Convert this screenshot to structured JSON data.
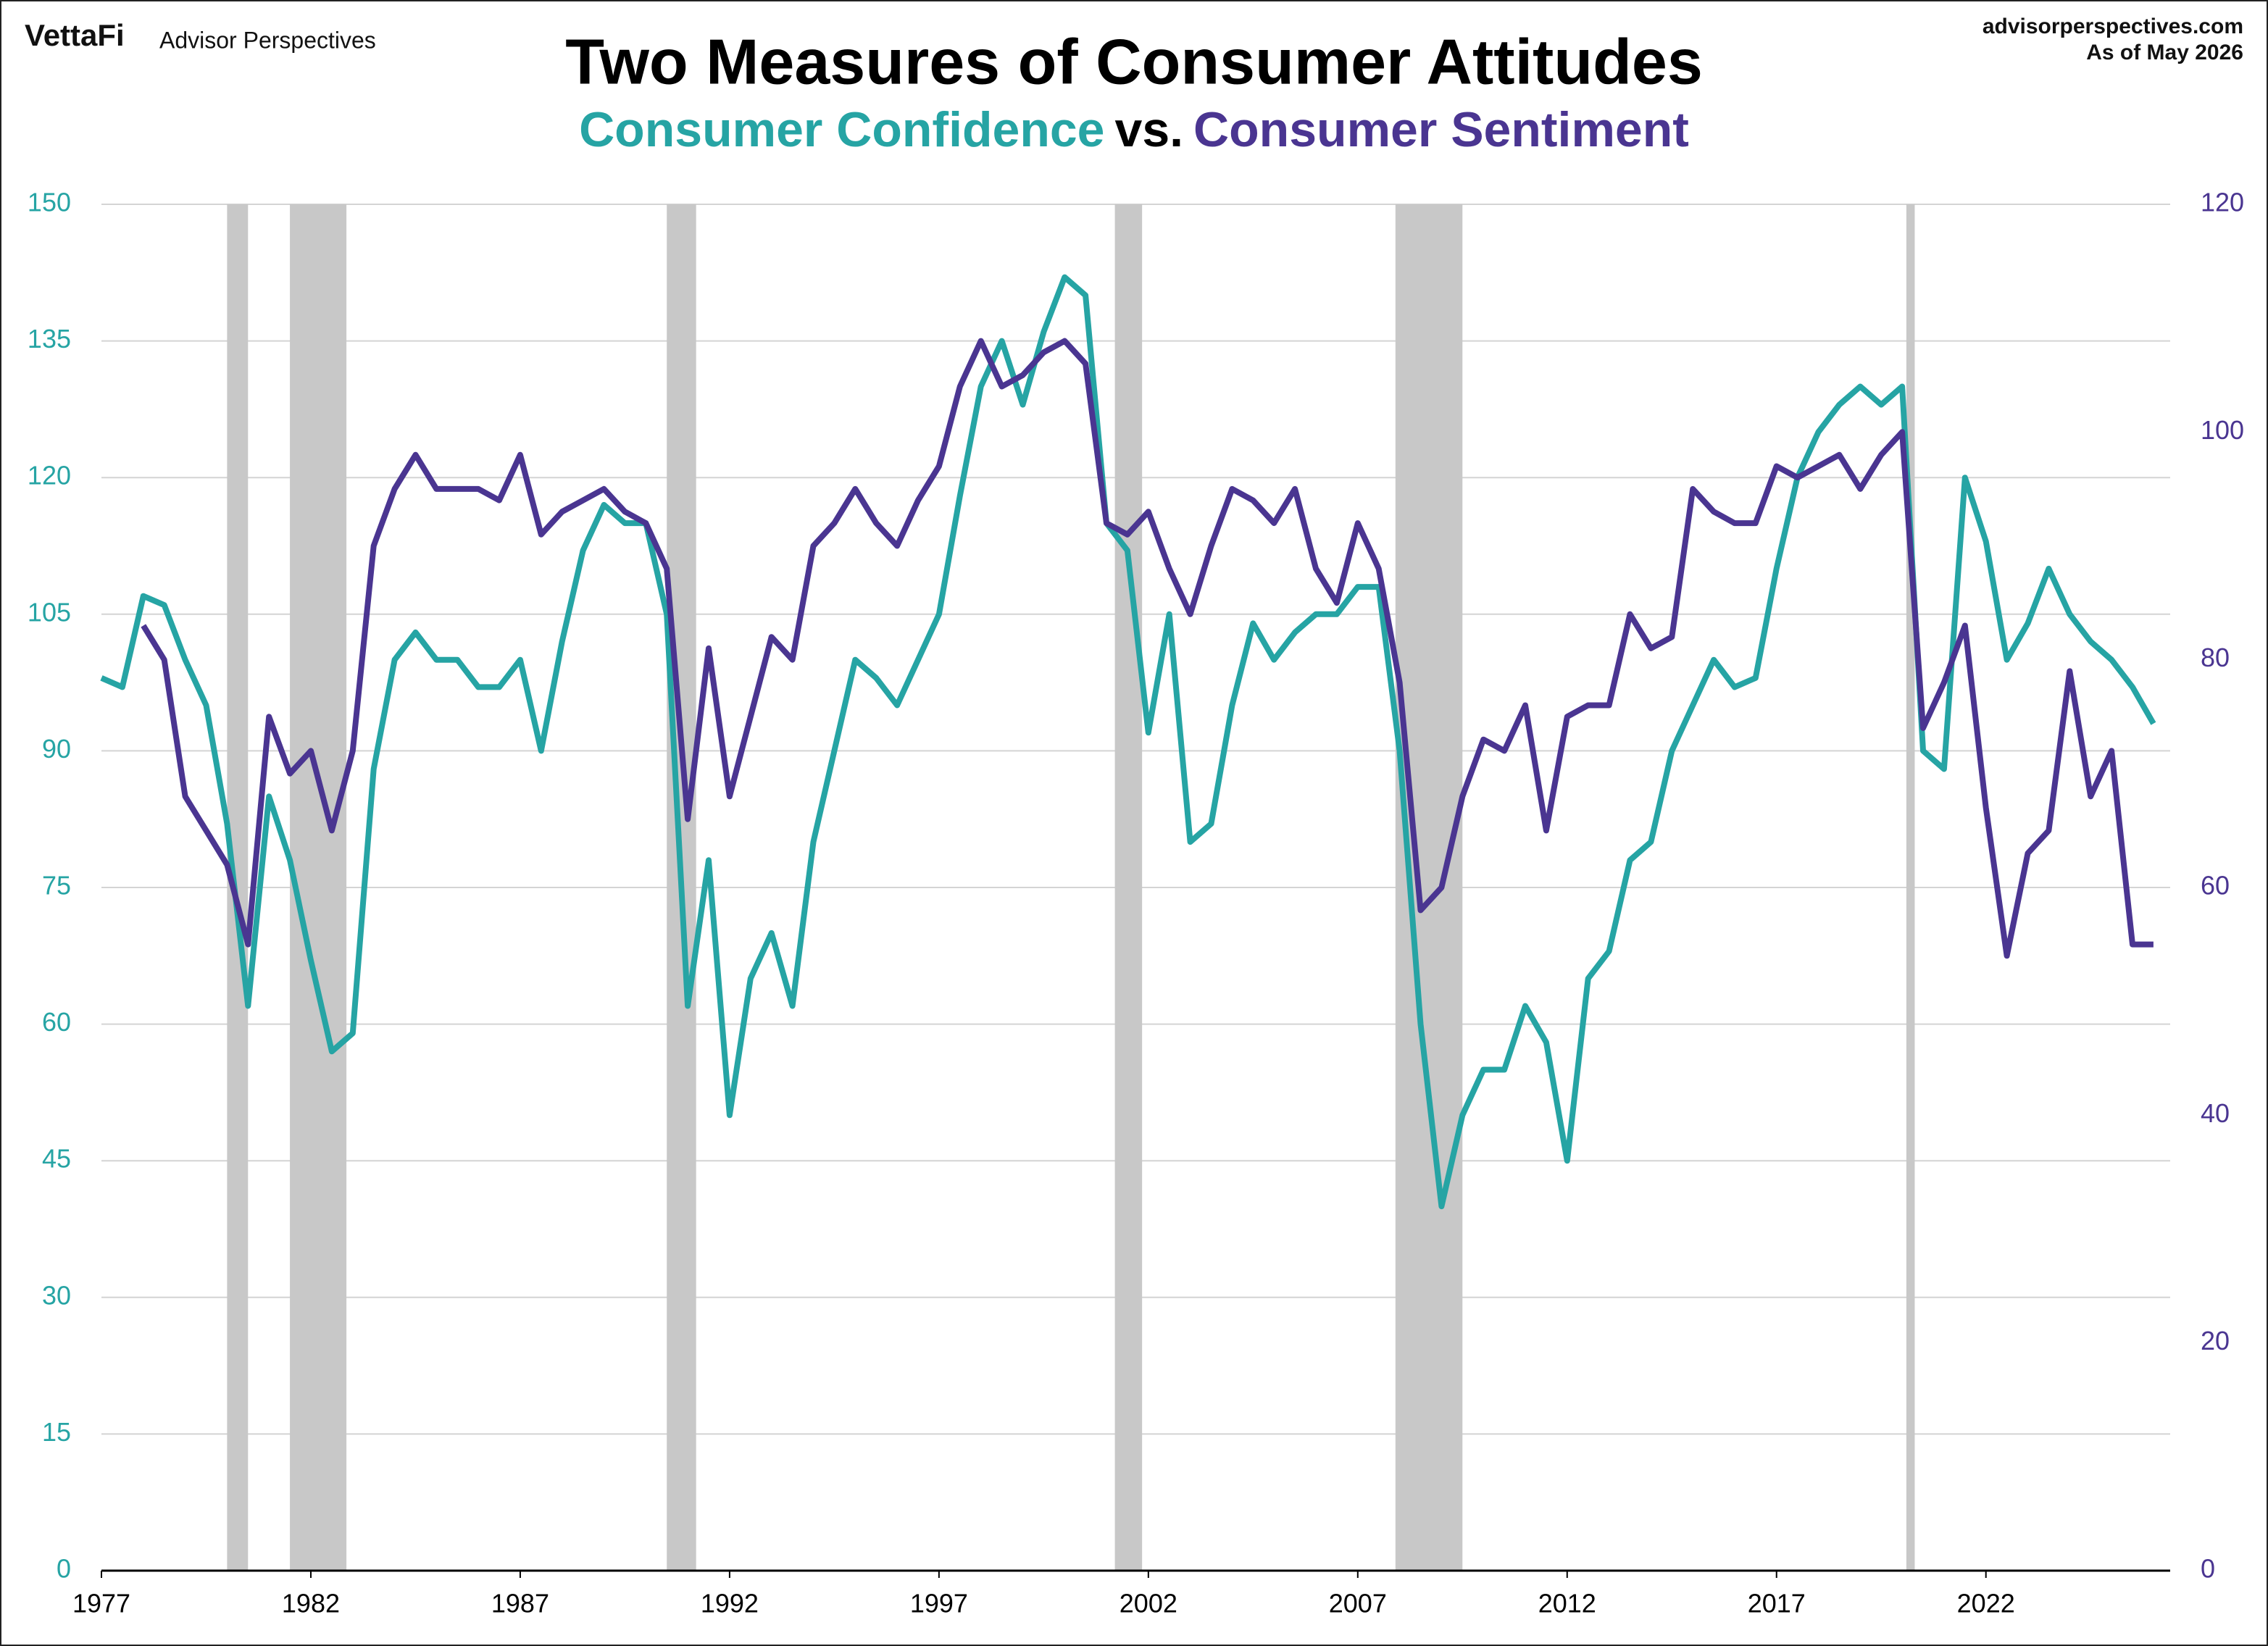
{
  "header": {
    "logo": "VettaFi",
    "brand": "Advisor Perspectives",
    "source": "advisorperspectives.com",
    "date_note": "As of May 2026"
  },
  "chart_data": {
    "type": "line",
    "title": "Two Measures of Consumer Attitudes",
    "subtitle_joiner": "vs.",
    "x": [
      1977,
      1977.5,
      1978,
      1978.5,
      1979,
      1979.5,
      1980,
      1980.5,
      1981,
      1981.5,
      1982,
      1982.5,
      1983,
      1983.5,
      1984,
      1984.5,
      1985,
      1985.5,
      1986,
      1986.5,
      1987,
      1987.5,
      1988,
      1988.5,
      1989,
      1989.5,
      1990,
      1990.5,
      1991,
      1991.5,
      1992,
      1992.5,
      1993,
      1993.5,
      1994,
      1994.5,
      1995,
      1995.5,
      1996,
      1996.5,
      1997,
      1997.5,
      1998,
      1998.5,
      1999,
      1999.5,
      2000,
      2000.5,
      2001,
      2001.5,
      2002,
      2002.5,
      2003,
      2003.5,
      2004,
      2004.5,
      2005,
      2005.5,
      2006,
      2006.5,
      2007,
      2007.5,
      2008,
      2008.5,
      2009,
      2009.5,
      2010,
      2010.5,
      2011,
      2011.5,
      2012,
      2012.5,
      2013,
      2013.5,
      2014,
      2014.5,
      2015,
      2015.5,
      2016,
      2016.5,
      2017,
      2017.5,
      2018,
      2018.5,
      2019,
      2019.5,
      2020,
      2020.5,
      2021,
      2021.5,
      2022,
      2022.5,
      2023,
      2023.5,
      2024,
      2024.5,
      2025,
      2025.5,
      2026
    ],
    "series": [
      {
        "name": "Consumer Confidence",
        "color": "#26a4a4",
        "axis": "y",
        "values": [
          98,
          97,
          107,
          106,
          100,
          95,
          82,
          62,
          85,
          78,
          67,
          57,
          59,
          88,
          100,
          103,
          100,
          100,
          97,
          97,
          100,
          90,
          102,
          112,
          117,
          115,
          115,
          105,
          62,
          78,
          50,
          65,
          70,
          62,
          80,
          90,
          100,
          98,
          95,
          100,
          105,
          118,
          130,
          135,
          128,
          136,
          142,
          140,
          115,
          112,
          92,
          105,
          80,
          82,
          95,
          104,
          100,
          103,
          105,
          105,
          108,
          108,
          90,
          60,
          40,
          50,
          55,
          55,
          62,
          58,
          45,
          65,
          68,
          78,
          80,
          90,
          95,
          100,
          97,
          98,
          110,
          120,
          125,
          128,
          130,
          128,
          130,
          90,
          88,
          120,
          113,
          100,
          104,
          110,
          105,
          102,
          100,
          97,
          93
        ]
      },
      {
        "name": "Consumer Sentiment",
        "color": "#4a3591",
        "axis": "y2",
        "values": [
          null,
          null,
          83,
          80,
          68,
          65,
          62,
          55,
          75,
          70,
          72,
          65,
          72,
          90,
          95,
          98,
          95,
          95,
          95,
          94,
          98,
          91,
          93,
          94,
          95,
          93,
          92,
          88,
          66,
          81,
          68,
          75,
          82,
          80,
          90,
          92,
          95,
          92,
          90,
          94,
          97,
          104,
          108,
          104,
          105,
          107,
          108,
          106,
          92,
          91,
          93,
          88,
          84,
          90,
          95,
          94,
          92,
          95,
          88,
          85,
          92,
          88,
          78,
          58,
          60,
          68,
          73,
          72,
          76,
          65,
          75,
          76,
          76,
          84,
          81,
          82,
          95,
          93,
          92,
          92,
          97,
          96,
          97,
          98,
          95,
          98,
          100,
          74,
          78,
          83,
          67,
          54,
          63,
          65,
          79,
          68,
          72,
          55,
          55
        ]
      }
    ],
    "recessions": [
      [
        1980.0,
        1980.5
      ],
      [
        1981.5,
        1982.85
      ],
      [
        1990.5,
        1991.2
      ],
      [
        2001.2,
        2001.85
      ],
      [
        2007.9,
        2009.5
      ],
      [
        2020.1,
        2020.3
      ]
    ],
    "recession_color": "#c8c8c8",
    "xlim": [
      1977,
      2026.4
    ],
    "xticks": [
      1977,
      1982,
      1987,
      1992,
      1997,
      2002,
      2007,
      2012,
      2017,
      2022
    ],
    "ylim": [
      0,
      150
    ],
    "yticks": [
      0,
      15,
      30,
      45,
      60,
      75,
      90,
      105,
      120,
      135,
      150
    ],
    "y2lim": [
      0,
      120
    ],
    "y2ticks": [
      0,
      20,
      40,
      60,
      80,
      100,
      120
    ],
    "grid": true
  }
}
